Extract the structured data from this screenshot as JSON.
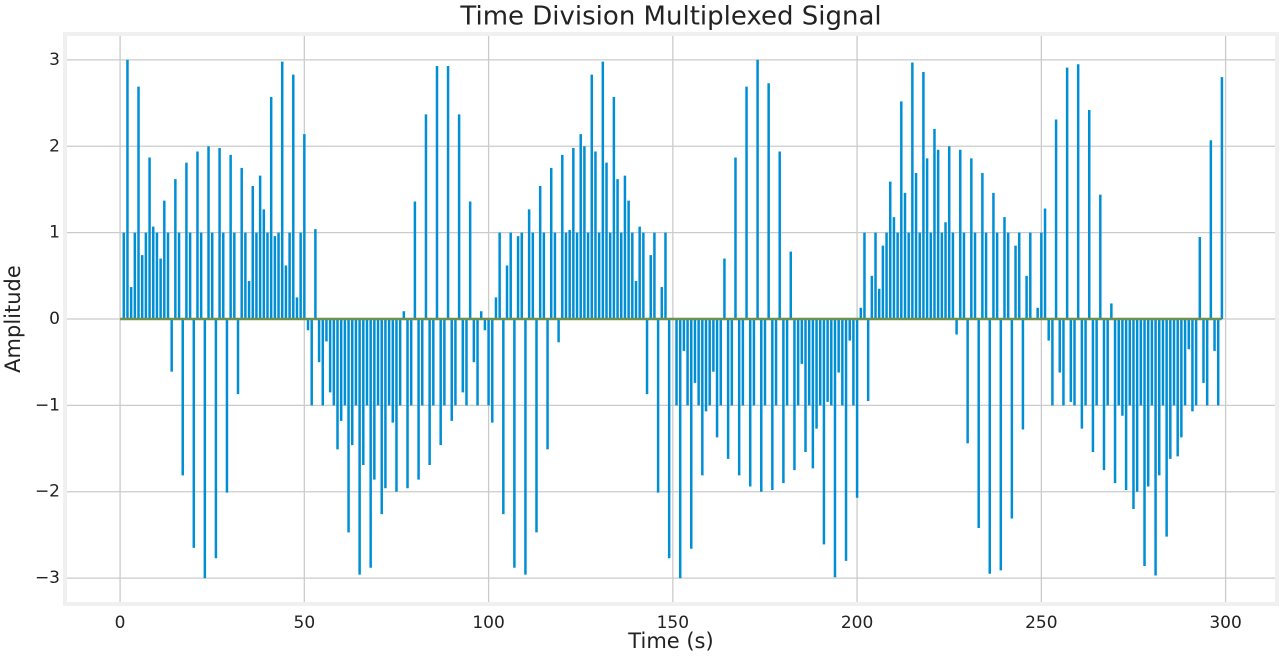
{
  "chart_data": {
    "type": "stem",
    "title": "Time Division Multiplexed Signal",
    "x_label": "Time (s)",
    "y_label": "Amplitude",
    "color": "#008fd5",
    "baseline_color": "#6d904f",
    "grid": true,
    "xlim": [
      -14.95,
      313.95
    ],
    "ylim": [
      -3.3,
      3.3
    ],
    "xticks": [
      0,
      50,
      100,
      150,
      200,
      250,
      300
    ],
    "yticks": [
      {
        "value": -3,
        "label": "−3"
      },
      {
        "value": -2,
        "label": "−2"
      },
      {
        "value": -1,
        "label": "−1"
      },
      0,
      1,
      2,
      3
    ],
    "x": [
      0,
      1,
      2,
      3,
      4,
      5,
      6,
      7,
      8,
      9,
      10,
      11,
      12,
      13,
      14,
      15,
      16,
      17,
      18,
      19,
      20,
      21,
      22,
      23,
      24,
      25,
      26,
      27,
      28,
      29,
      30,
      31,
      32,
      33,
      34,
      35,
      36,
      37,
      38,
      39,
      40,
      41,
      42,
      43,
      44,
      45,
      46,
      47,
      48,
      49,
      50,
      51,
      52,
      53,
      54,
      55,
      56,
      57,
      58,
      59,
      60,
      61,
      62,
      63,
      64,
      65,
      66,
      67,
      68,
      69,
      70,
      71,
      72,
      73,
      74,
      75,
      76,
      77,
      78,
      79,
      80,
      81,
      82,
      83,
      84,
      85,
      86,
      87,
      88,
      89,
      90,
      91,
      92,
      93,
      94,
      95,
      96,
      97,
      98,
      99,
      100,
      101,
      102,
      103,
      104,
      105,
      106,
      107,
      108,
      109,
      110,
      111,
      112,
      113,
      114,
      115,
      116,
      117,
      118,
      119,
      120,
      121,
      122,
      123,
      124,
      125,
      126,
      127,
      128,
      129,
      130,
      131,
      132,
      133,
      134,
      135,
      136,
      137,
      138,
      139,
      140,
      141,
      142,
      143,
      144,
      145,
      146,
      147,
      148,
      149,
      150,
      151,
      152,
      153,
      154,
      155,
      156,
      157,
      158,
      159,
      160,
      161,
      162,
      163,
      164,
      165,
      166,
      167,
      168,
      169,
      170,
      171,
      172,
      173,
      174,
      175,
      176,
      177,
      178,
      179,
      180,
      181,
      182,
      183,
      184,
      185,
      186,
      187,
      188,
      189,
      190,
      191,
      192,
      193,
      194,
      195,
      196,
      197,
      198,
      199,
      200,
      201,
      202,
      203,
      204,
      205,
      206,
      207,
      208,
      209,
      210,
      211,
      212,
      213,
      214,
      215,
      216,
      217,
      218,
      219,
      220,
      221,
      222,
      223,
      224,
      225,
      226,
      227,
      228,
      229,
      230,
      231,
      232,
      233,
      234,
      235,
      236,
      237,
      238,
      239,
      240,
      241,
      242,
      243,
      244,
      245,
      246,
      247,
      248,
      249,
      250,
      251,
      252,
      253,
      254,
      255,
      256,
      257,
      258,
      259,
      260,
      261,
      262,
      263,
      264,
      265,
      266,
      267,
      268,
      269,
      270,
      271,
      272,
      273,
      274,
      275,
      276,
      277,
      278,
      279,
      280,
      281,
      282,
      283,
      284,
      285,
      286,
      287,
      288,
      289,
      290,
      291,
      292,
      293,
      294,
      295,
      296,
      297,
      298,
      299
    ],
    "values": [
      0,
      1,
      3,
      0.37,
      1,
      2.69,
      0.74,
      1,
      1.87,
      1.07,
      1,
      0.7,
      1.37,
      1,
      -0.61,
      1.62,
      1,
      -1.81,
      1.81,
      1,
      -2.65,
      1.94,
      1,
      -3,
      2,
      1,
      -2.77,
      1.98,
      1,
      -2.01,
      1.9,
      1,
      -0.87,
      1.75,
      1,
      0.44,
      1.54,
      1,
      1.66,
      1.27,
      1,
      2.57,
      0.96,
      1,
      2.98,
      0.62,
      1,
      2.83,
      0.25,
      1,
      2.14,
      -0.13,
      -1,
      1.04,
      -0.5,
      -1,
      -0.26,
      -0.85,
      -1,
      -1.51,
      -1.18,
      -1,
      -2.47,
      -1.46,
      -1,
      -2.96,
      -1.69,
      -1,
      -2.88,
      -1.86,
      -1,
      -2.26,
      -1.96,
      -1,
      -1.2,
      -2,
      -1,
      0.09,
      -1.96,
      -1,
      1.36,
      -1.86,
      -1,
      2.37,
      -1.69,
      -1,
      2.93,
      -1.46,
      -1,
      2.93,
      -1.18,
      -1,
      2.37,
      -0.85,
      -1,
      1.36,
      -0.5,
      -1,
      0.09,
      -0.13,
      -1,
      -1.2,
      0.25,
      1,
      -2.26,
      0.62,
      1,
      -2.88,
      0.96,
      1,
      -2.96,
      1.27,
      1,
      -2.47,
      1.54,
      1,
      -1.51,
      1.75,
      1,
      -0.27,
      1.9,
      1,
      1.03,
      1.98,
      1,
      2.14,
      2,
      1,
      2.83,
      1.94,
      1,
      2.98,
      1.81,
      1,
      2.57,
      1.62,
      1,
      1.66,
      1.37,
      1,
      0.44,
      1.07,
      1,
      -0.87,
      0.74,
      1,
      -2.01,
      0.37,
      1,
      -2.77,
      0,
      -1,
      -3,
      -0.37,
      -1,
      -2.66,
      -0.74,
      -1,
      -1.81,
      -1.07,
      -1,
      -0.61,
      -1.37,
      -1,
      0.7,
      -1.62,
      -1,
      1.87,
      -1.81,
      -1,
      2.69,
      -1.94,
      -1,
      3,
      -2,
      -1,
      2.73,
      -1.98,
      -1,
      1.94,
      -1.9,
      -1,
      0.78,
      -1.75,
      -1,
      -0.52,
      -1.54,
      -1,
      -1.73,
      -1.27,
      -1,
      -2.61,
      -0.96,
      -1,
      -2.99,
      -0.62,
      -1,
      -2.8,
      -0.25,
      -1,
      -2.07,
      0.13,
      1,
      -0.95,
      0.5,
      1,
      0.35,
      0.85,
      1,
      1.59,
      1.18,
      1,
      2.52,
      1.46,
      1,
      2.97,
      1.69,
      1,
      2.86,
      1.86,
      1,
      2.2,
      1.96,
      1,
      1.12,
      2,
      1,
      -0.18,
      1.96,
      1,
      -1.44,
      1.86,
      1,
      -2.42,
      1.69,
      1,
      -2.95,
      1.46,
      1,
      -2.91,
      1.18,
      1,
      -2.31,
      0.85,
      1,
      -1.28,
      0.5,
      1,
      0,
      0.13,
      1,
      1.28,
      -0.25,
      -1,
      2.31,
      -0.62,
      -1,
      2.91,
      -0.96,
      -1,
      2.95,
      -1.27,
      -1,
      2.42,
      -1.54,
      -1,
      1.44,
      -1.75,
      -1,
      0.18,
      -1.9,
      -1,
      -1.12,
      -1.98,
      -1,
      -2.2,
      -2,
      -1,
      -2.86,
      -1.94,
      -1,
      -2.97,
      -1.81,
      -1,
      -2.52,
      -1.62,
      -1,
      -1.59,
      -1.37,
      -1,
      -0.35,
      -1.07,
      -1,
      0.95,
      -0.74,
      -1,
      2.07,
      -0.37,
      -1,
      2.8
    ]
  }
}
